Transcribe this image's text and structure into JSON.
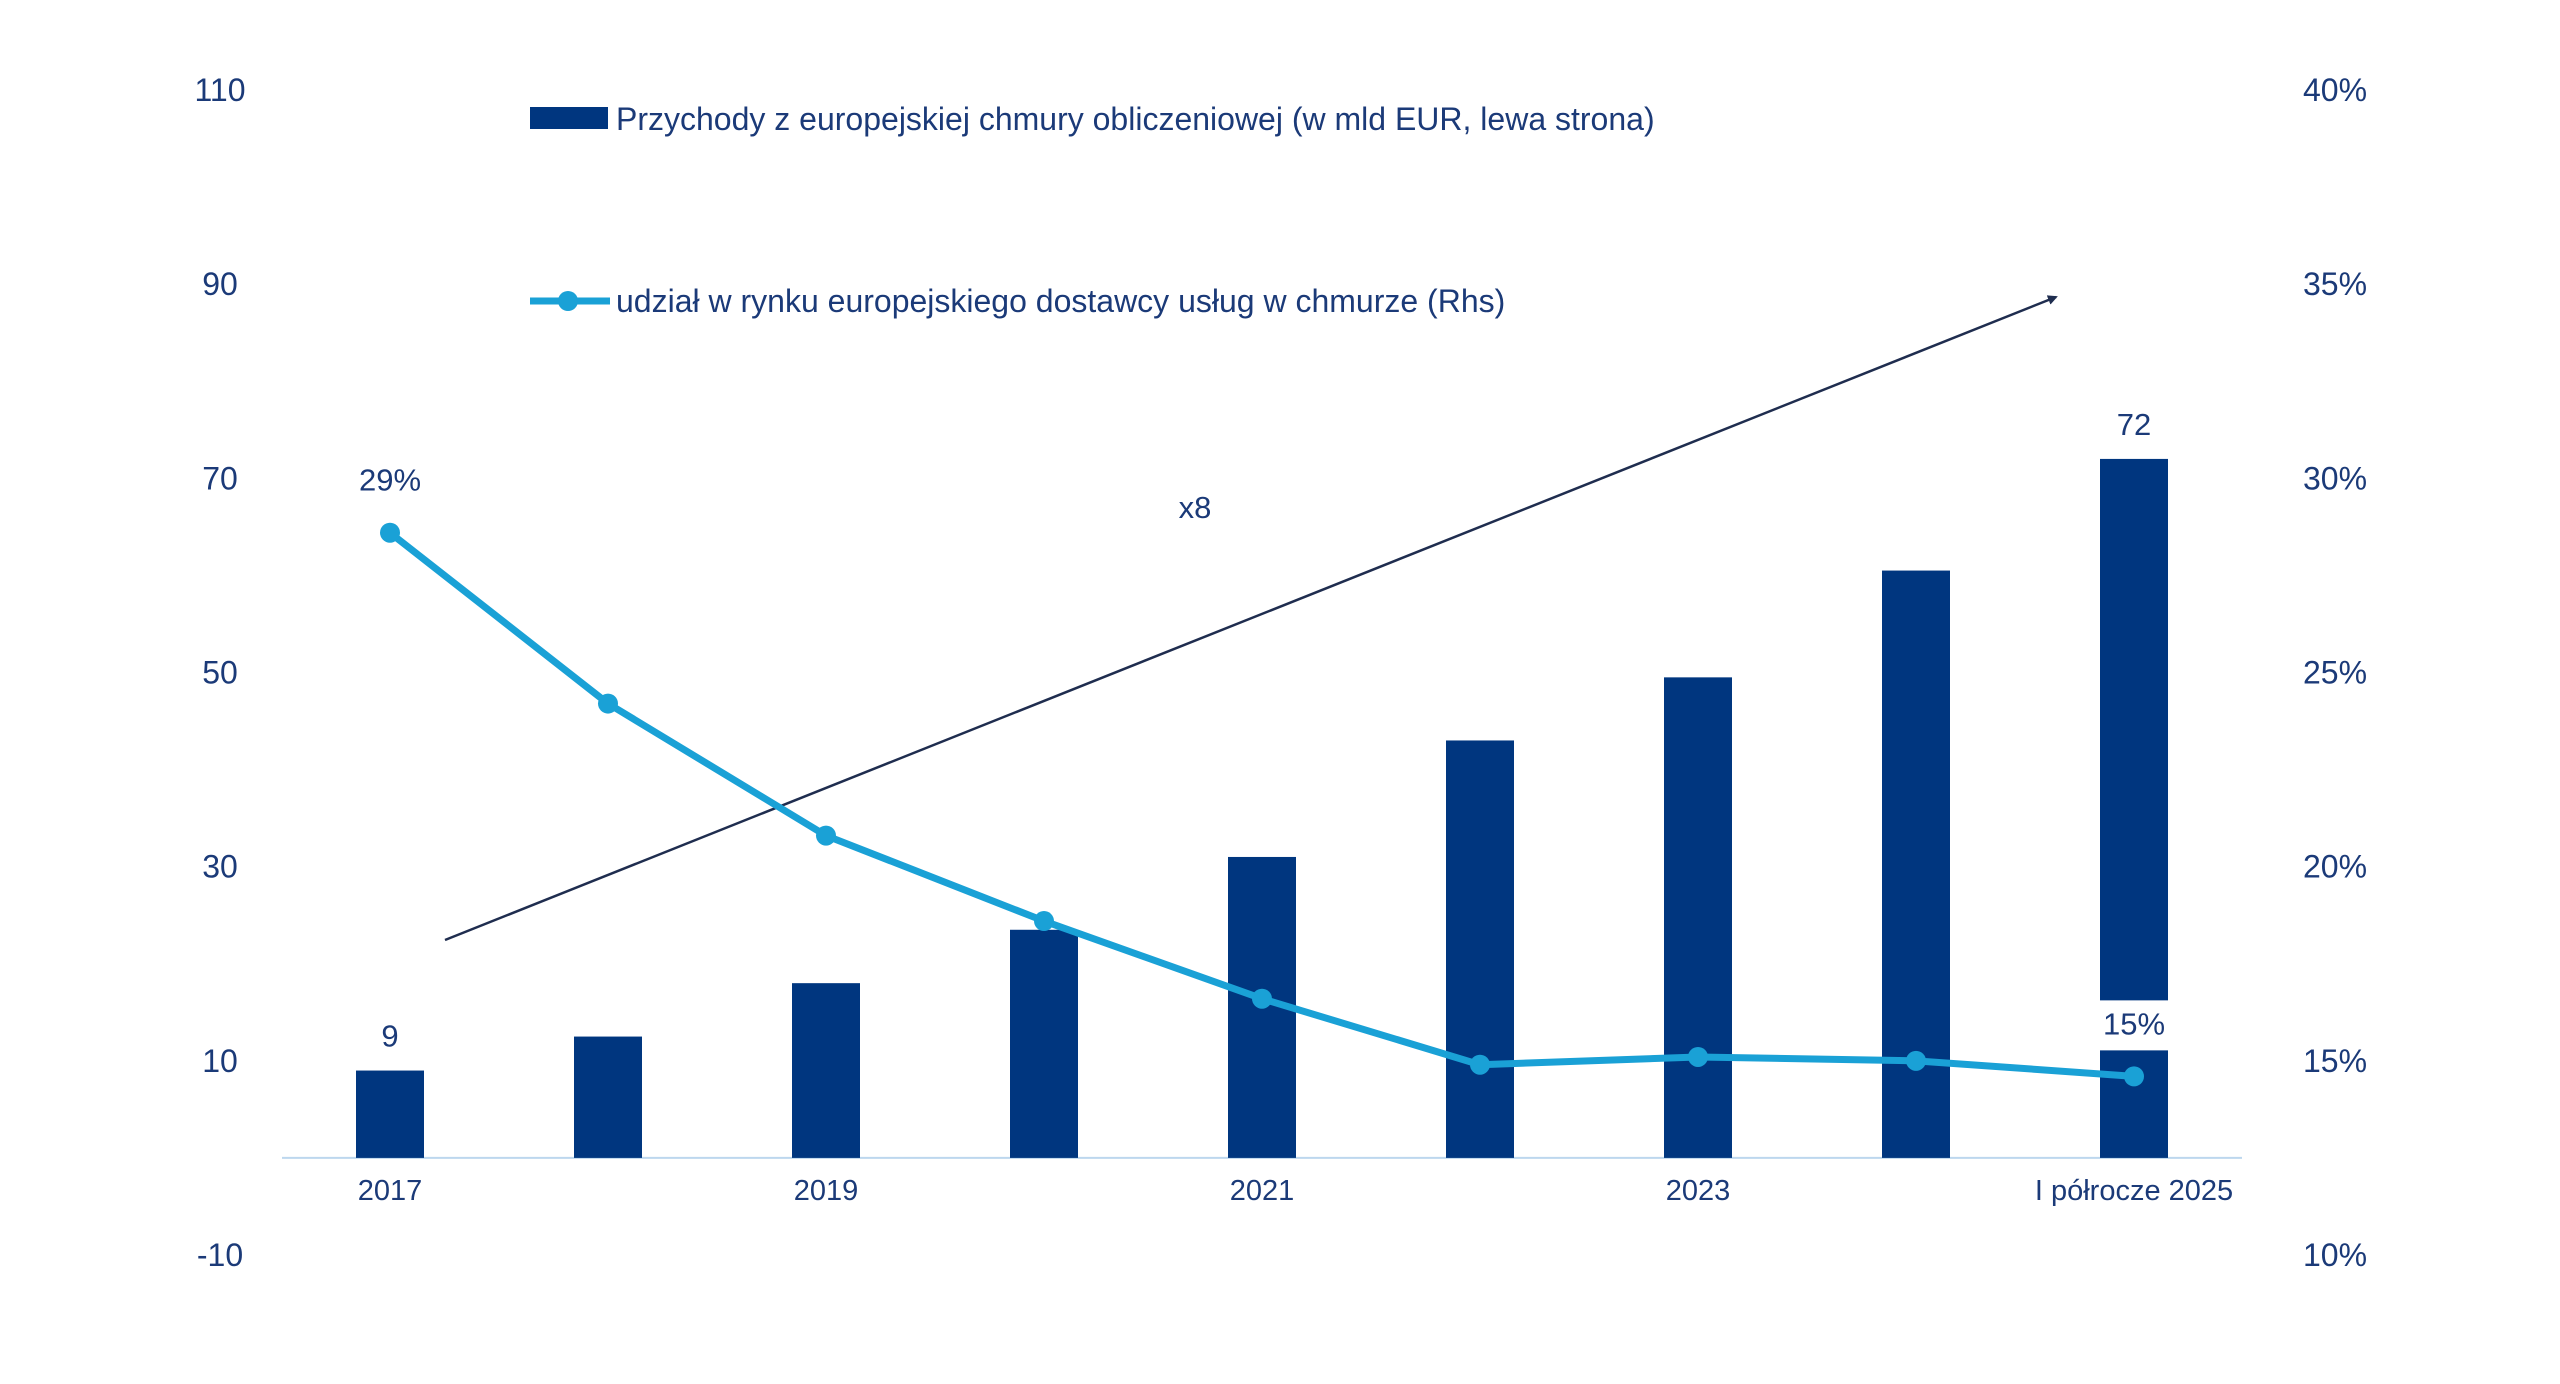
{
  "chart_data": {
    "type": "bar",
    "categories": [
      "2017",
      "",
      "2019",
      "",
      "2021",
      "",
      "2023",
      "",
      "I półrocze 2025"
    ],
    "series": [
      {
        "name": "Przychody z europejskiej chmury obliczeniowej (w mld EUR, lewa strona)",
        "type": "bar",
        "axis": "left",
        "values": [
          9,
          12.5,
          18,
          23.5,
          31,
          43,
          49.5,
          60.5,
          72
        ],
        "color": "#00367f"
      },
      {
        "name": "udział w rynku europejskiego dostawcy usług w chmurze (Rhs)",
        "type": "line",
        "axis": "right",
        "values": [
          28.6,
          24.2,
          20.8,
          18.6,
          16.6,
          14.9,
          15.1,
          15.0,
          14.6
        ],
        "color": "#1aa1d6"
      }
    ],
    "left_axis": {
      "range": [
        -10,
        110
      ],
      "ticks": [
        "-10",
        "10",
        "30",
        "50",
        "70",
        "90",
        "110"
      ]
    },
    "right_axis": {
      "range": [
        10,
        40
      ],
      "ticks": [
        "10%",
        "15%",
        "20%",
        "25%",
        "30%",
        "35%",
        "40%"
      ]
    },
    "data_labels": [
      {
        "text": "9",
        "series": 0,
        "index": 0
      },
      {
        "text": "72",
        "series": 0,
        "index": 8
      },
      {
        "text": "29%",
        "series": 1,
        "index": 0
      },
      {
        "text": "15%",
        "series": 1,
        "index": 8
      }
    ],
    "annotations": [
      {
        "text": "x8",
        "note": "arrow from first bar to last bar"
      }
    ],
    "grid": false,
    "legend_position": "top"
  },
  "colors": {
    "axis_text": "#1b3a78",
    "bar": "#00367f",
    "line": "#1aa1d6",
    "arrow": "#1f2d4f",
    "baseline": "#bdd7ee"
  }
}
